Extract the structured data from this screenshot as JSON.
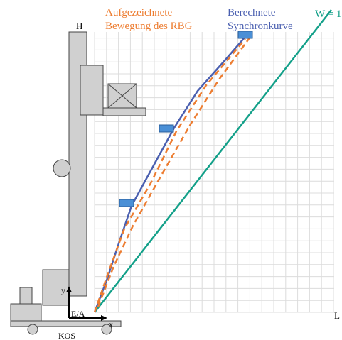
{
  "labels": {
    "mast_top": "H",
    "recorded": [
      "Aufgezeichnete",
      "Bewegung des RBG"
    ],
    "computed": [
      "Berechnete",
      "Synchronkurve"
    ],
    "ratio": "W = 1",
    "length_axis": "L",
    "y_axis": "y",
    "x_axis": "x",
    "origin": "E/A",
    "frame": "KOS"
  }
}
